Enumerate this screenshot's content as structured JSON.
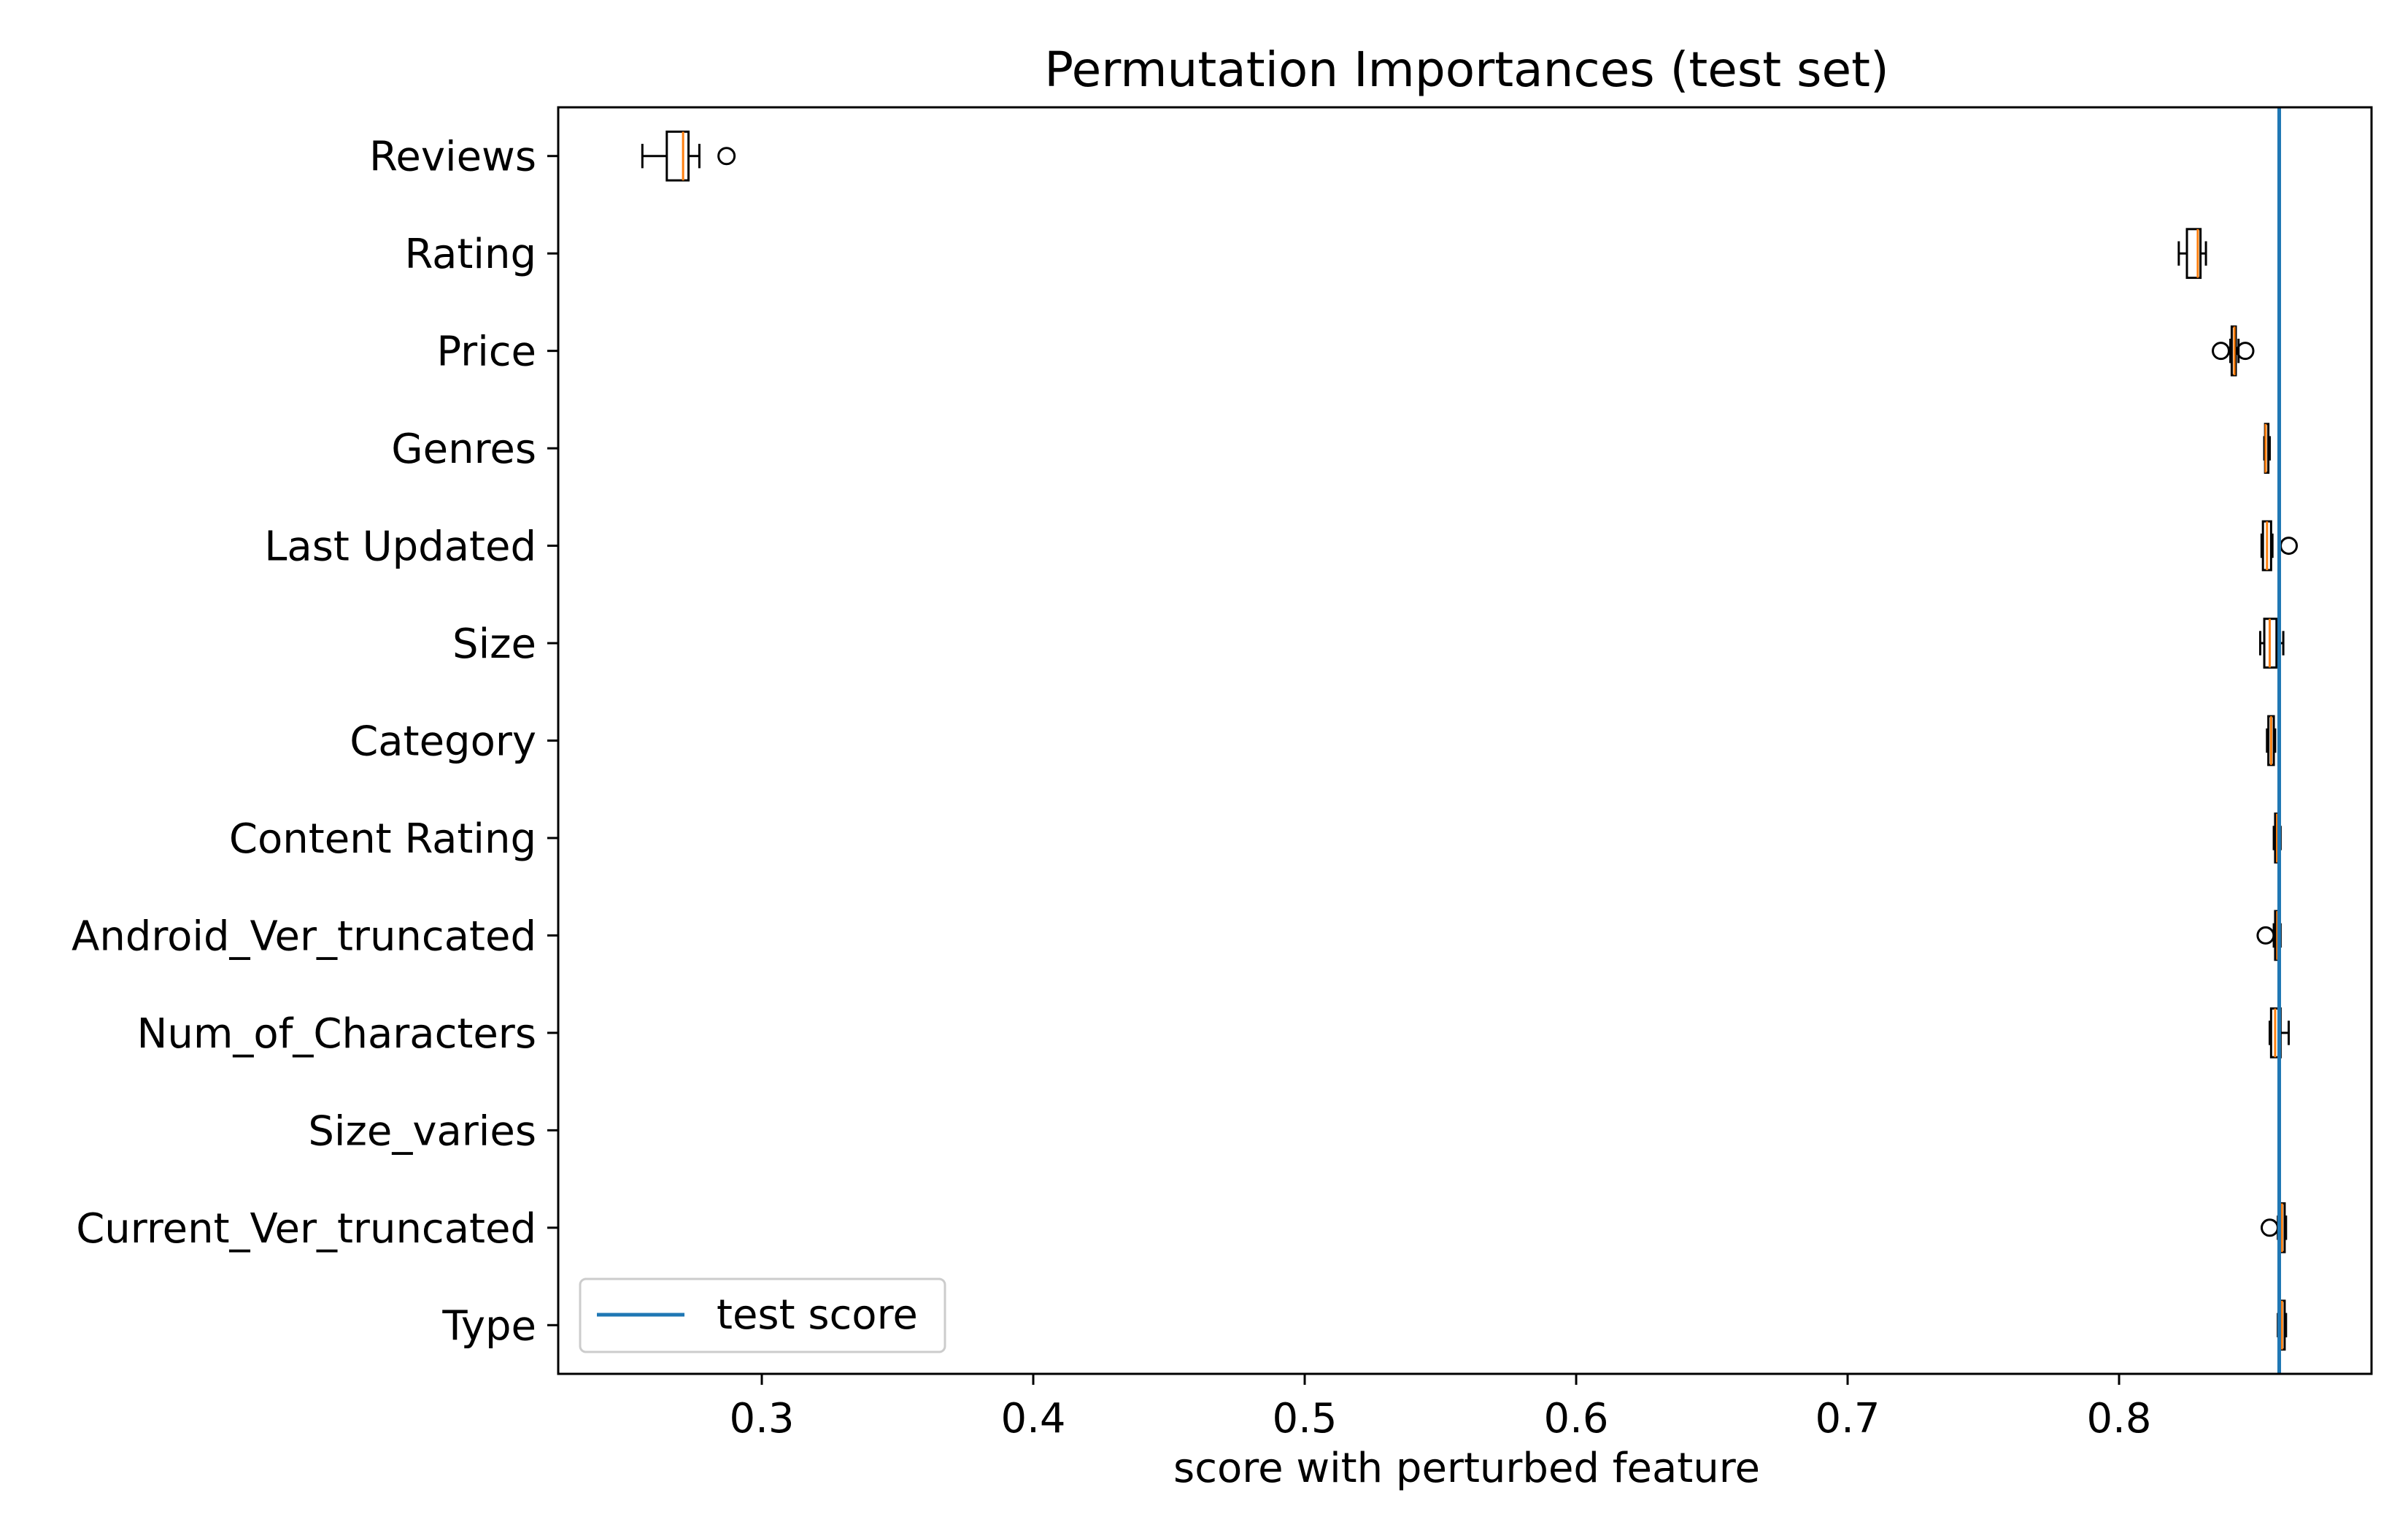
{
  "chart_data": {
    "type": "boxplot",
    "orientation": "horizontal",
    "title": "Permutation Importances (test set)",
    "xlabel": "score with perturbed feature",
    "ylabel": "",
    "xlim": [
      0.225,
      0.893
    ],
    "xticks": [
      0.3,
      0.4,
      0.5,
      0.6,
      0.7,
      0.8
    ],
    "xtick_labels": [
      "0.3",
      "0.4",
      "0.5",
      "0.6",
      "0.7",
      "0.8"
    ],
    "grid": false,
    "legend": {
      "position": "lower-left",
      "entries": [
        "test score"
      ]
    },
    "reference_line": {
      "name": "test score",
      "value": 0.859,
      "color": "#1f77b4"
    },
    "colors": {
      "box": "#000000",
      "median": "#ff7f0e",
      "outlier": "#000000"
    },
    "categories": [
      "Reviews",
      "Rating",
      "Price",
      "Genres",
      "Last Updated",
      "Size",
      "Category",
      "Content Rating",
      "Android_Ver_truncated",
      "Num_of_Characters",
      "Size_varies",
      "Current_Ver_truncated",
      "Type"
    ],
    "boxes": [
      {
        "label": "Reviews",
        "whislo": 0.256,
        "q1": 0.265,
        "med": 0.271,
        "q3": 0.273,
        "whishi": 0.277,
        "fliers": [
          0.287
        ]
      },
      {
        "label": "Rating",
        "whislo": 0.822,
        "q1": 0.825,
        "med": 0.829,
        "q3": 0.83,
        "whishi": 0.832,
        "fliers": []
      },
      {
        "label": "Price",
        "whislo": 0.841,
        "q1": 0.8415,
        "med": 0.8425,
        "q3": 0.843,
        "whishi": 0.844,
        "fliers": [
          0.8375,
          0.8465
        ]
      },
      {
        "label": "Genres",
        "whislo": 0.8535,
        "q1": 0.8538,
        "med": 0.854,
        "q3": 0.855,
        "whishi": 0.8555,
        "fliers": []
      },
      {
        "label": "Last Updated",
        "whislo": 0.8525,
        "q1": 0.853,
        "med": 0.8545,
        "q3": 0.856,
        "whishi": 0.8565,
        "fliers": [
          0.8625
        ]
      },
      {
        "label": "Size",
        "whislo": 0.852,
        "q1": 0.8535,
        "med": 0.8555,
        "q3": 0.858,
        "whishi": 0.8605,
        "fliers": []
      },
      {
        "label": "Category",
        "whislo": 0.8545,
        "q1": 0.855,
        "med": 0.856,
        "q3": 0.857,
        "whishi": 0.8575,
        "fliers": []
      },
      {
        "label": "Content Rating",
        "whislo": 0.857,
        "q1": 0.8575,
        "med": 0.8582,
        "q3": 0.859,
        "whishi": 0.8595,
        "fliers": []
      },
      {
        "label": "Android_Ver_truncated",
        "whislo": 0.857,
        "q1": 0.8575,
        "med": 0.8583,
        "q3": 0.859,
        "whishi": 0.8595,
        "fliers": [
          0.854
        ]
      },
      {
        "label": "Num_of_Characters",
        "whislo": 0.8555,
        "q1": 0.856,
        "med": 0.8575,
        "q3": 0.8595,
        "whishi": 0.8625,
        "fliers": []
      },
      {
        "label": "Size_varies",
        "whislo": 0.859,
        "q1": 0.859,
        "med": 0.859,
        "q3": 0.859,
        "whishi": 0.859,
        "fliers": []
      },
      {
        "label": "Current_Ver_truncated",
        "whislo": 0.8585,
        "q1": 0.859,
        "med": 0.86,
        "q3": 0.861,
        "whishi": 0.8615,
        "fliers": [
          0.8555
        ]
      },
      {
        "label": "Type",
        "whislo": 0.8585,
        "q1": 0.859,
        "med": 0.86,
        "q3": 0.861,
        "whishi": 0.8615,
        "fliers": []
      }
    ]
  }
}
